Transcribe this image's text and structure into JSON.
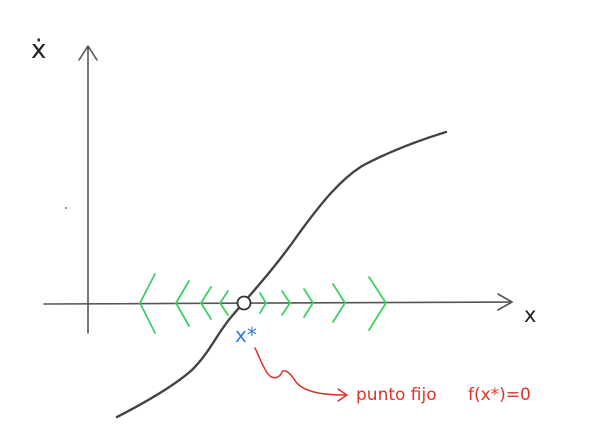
{
  "labels": {
    "y_axis": "ẋ",
    "x_axis": "x",
    "fixed_point": "x*",
    "annotation_name": "punto fijo",
    "annotation_equation": "f(x*)=0"
  },
  "colors": {
    "axes": "#555555",
    "curve": "#404447",
    "flow_arrows": "#3ecf66",
    "fixed_point_label": "#2f7de0",
    "annotation": "#e0322b"
  },
  "flow": {
    "left_side_direction": "left",
    "right_side_direction": "right"
  },
  "fixed_point_marker": "open-circle"
}
